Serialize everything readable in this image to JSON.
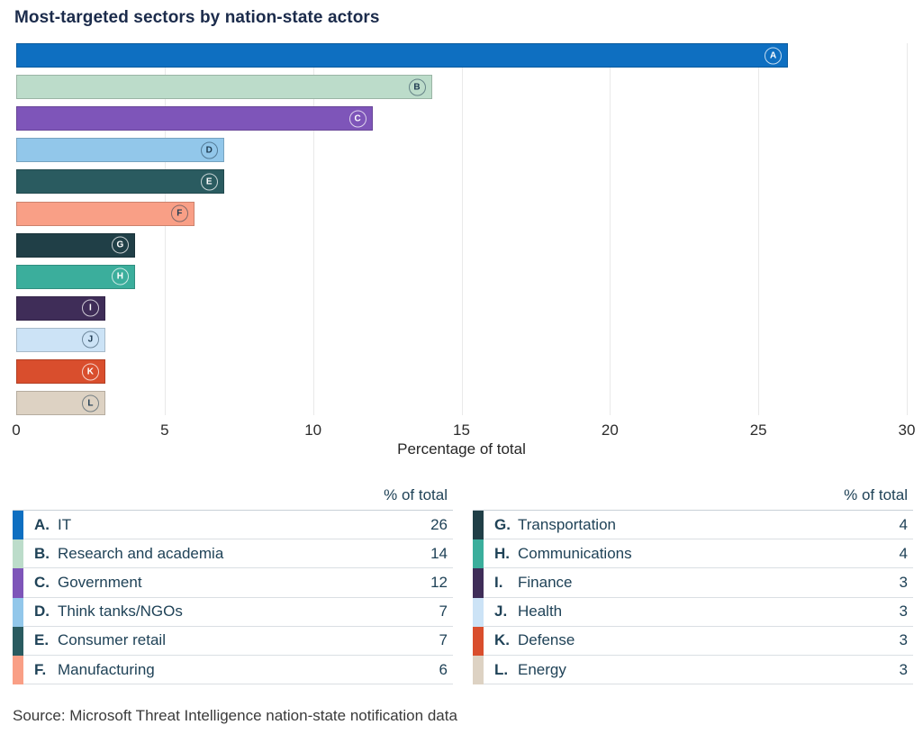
{
  "title": "Most-targeted sectors by nation-state actors",
  "source": "Source: Microsoft Threat Intelligence nation-state notification data",
  "legend": {
    "value_header": "% of total",
    "left_rows_range": [
      0,
      6
    ],
    "right_rows_range": [
      6,
      12
    ]
  },
  "colors": {
    "title_text": "#1b2b4b",
    "table_text": "#1f4257",
    "axis_text": "#2b2b2b",
    "gridline": "#e9e9e9",
    "row_divider": "#dadfe3",
    "background": "#ffffff"
  },
  "chart_data": {
    "type": "bar",
    "orientation": "horizontal",
    "title": "Most-targeted sectors by nation-state actors",
    "xlabel": "Percentage of total",
    "ylabel": "",
    "xlim": [
      0,
      30
    ],
    "xticks": [
      0,
      5,
      10,
      15,
      20,
      25,
      30
    ],
    "grid": true,
    "legend_position": "below-as-tables",
    "categories": [
      "IT",
      "Research and academia",
      "Government",
      "Think tanks/NGOs",
      "Consumer retail",
      "Manufacturing",
      "Transportation",
      "Communications",
      "Finance",
      "Health",
      "Defense",
      "Energy"
    ],
    "values": [
      26,
      14,
      12,
      7,
      7,
      6,
      4,
      4,
      3,
      3,
      3,
      3
    ],
    "sectors": [
      {
        "letter": "A",
        "name": "IT",
        "value": 26,
        "color": "#0e6fc1",
        "marker_text": "light"
      },
      {
        "letter": "B",
        "name": "Research and academia",
        "value": 14,
        "color": "#bcdcca",
        "marker_text": "dark"
      },
      {
        "letter": "C",
        "name": "Government",
        "value": 12,
        "color": "#7e55b9",
        "marker_text": "light"
      },
      {
        "letter": "D",
        "name": "Think tanks/NGOs",
        "value": 7,
        "color": "#92c7ea",
        "marker_text": "dark"
      },
      {
        "letter": "E",
        "name": "Consumer retail",
        "value": 7,
        "color": "#2a5b60",
        "marker_text": "light"
      },
      {
        "letter": "F",
        "name": "Manufacturing",
        "value": 6,
        "color": "#f99f86",
        "marker_text": "dark"
      },
      {
        "letter": "G",
        "name": "Transportation",
        "value": 4,
        "color": "#203f47",
        "marker_text": "light"
      },
      {
        "letter": "H",
        "name": "Communications",
        "value": 4,
        "color": "#3bae9c",
        "marker_text": "light"
      },
      {
        "letter": "I",
        "name": "Finance",
        "value": 3,
        "color": "#3f2d58",
        "marker_text": "light"
      },
      {
        "letter": "J",
        "name": "Health",
        "value": 3,
        "color": "#cce3f6",
        "marker_text": "dark"
      },
      {
        "letter": "K",
        "name": "Defense",
        "value": 3,
        "color": "#d94e2d",
        "marker_text": "light"
      },
      {
        "letter": "L",
        "name": "Energy",
        "value": 3,
        "color": "#ddd2c3",
        "marker_text": "dark"
      }
    ]
  }
}
